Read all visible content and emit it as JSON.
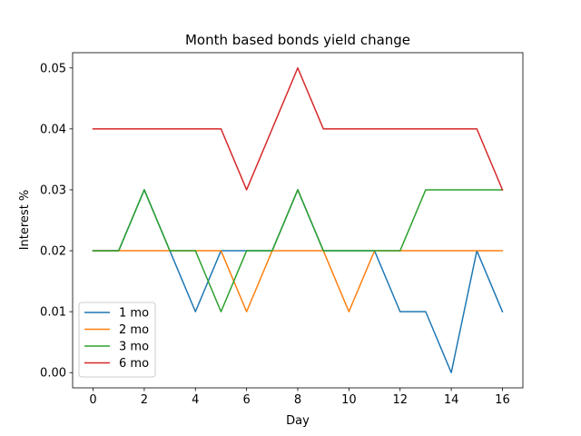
{
  "chart_data": {
    "type": "line",
    "title": "Month based bonds yield change",
    "xlabel": "Day",
    "ylabel": "Interest %",
    "x": [
      0,
      1,
      2,
      3,
      4,
      5,
      6,
      7,
      8,
      9,
      10,
      11,
      12,
      13,
      14,
      15,
      16
    ],
    "xlim": [
      -0.8,
      16.8
    ],
    "ylim": [
      -0.0025,
      0.0525
    ],
    "xticks": [
      0,
      2,
      4,
      6,
      8,
      10,
      12,
      14,
      16
    ],
    "yticks": [
      0.0,
      0.01,
      0.02,
      0.03,
      0.04,
      0.05
    ],
    "xtick_labels": [
      "0",
      "2",
      "4",
      "6",
      "8",
      "10",
      "12",
      "14",
      "16"
    ],
    "ytick_labels": [
      "0.00",
      "0.01",
      "0.02",
      "0.03",
      "0.04",
      "0.05"
    ],
    "grid": false,
    "legend_position": "lower-left",
    "series": [
      {
        "name": "1 mo",
        "color": "#1f77b4",
        "values": [
          0.02,
          0.02,
          0.03,
          0.02,
          0.01,
          0.02,
          0.02,
          0.02,
          0.03,
          0.02,
          0.02,
          0.02,
          0.01,
          0.01,
          0.0,
          0.02,
          0.01
        ]
      },
      {
        "name": "2 mo",
        "color": "#ff7f0e",
        "values": [
          0.02,
          0.02,
          0.02,
          0.02,
          0.02,
          0.02,
          0.01,
          0.02,
          0.02,
          0.02,
          0.01,
          0.02,
          0.02,
          0.02,
          0.02,
          0.02,
          0.02
        ]
      },
      {
        "name": "3 mo",
        "color": "#2ca02c",
        "values": [
          0.02,
          0.02,
          0.03,
          0.02,
          0.02,
          0.01,
          0.02,
          0.02,
          0.03,
          0.02,
          0.02,
          0.02,
          0.02,
          0.03,
          0.03,
          0.03,
          0.03
        ]
      },
      {
        "name": "6 mo",
        "color": "#d62728",
        "values": [
          0.04,
          0.04,
          0.04,
          0.04,
          0.04,
          0.04,
          0.03,
          0.04,
          0.05,
          0.04,
          0.04,
          0.04,
          0.04,
          0.04,
          0.04,
          0.04,
          0.03
        ]
      }
    ]
  }
}
